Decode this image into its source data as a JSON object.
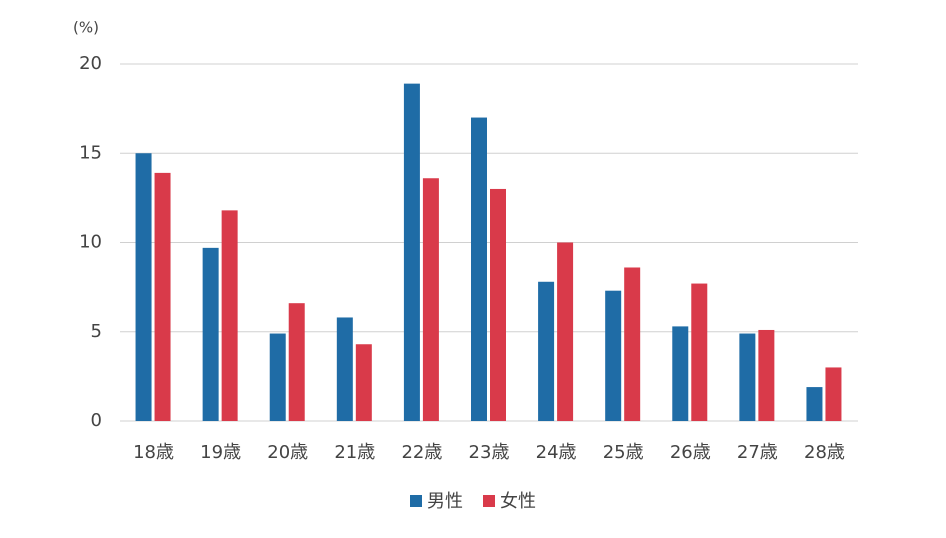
{
  "chart_data": {
    "type": "bar",
    "y_unit": "(%)",
    "categories": [
      "18歳",
      "19歳",
      "20歳",
      "21歳",
      "22歳",
      "23歳",
      "24歳",
      "25歳",
      "26歳",
      "27歳",
      "28歳"
    ],
    "series": [
      {
        "name": "男性",
        "color": "#1f6ca6",
        "values": [
          15,
          9.7,
          4.9,
          5.8,
          18.9,
          17.0,
          7.8,
          7.3,
          5.3,
          4.9,
          1.9
        ]
      },
      {
        "name": "女性",
        "color": "#d93a4a",
        "values": [
          13.9,
          11.8,
          6.6,
          4.3,
          13.6,
          13.0,
          10.0,
          8.6,
          7.7,
          5.1,
          3.0
        ]
      }
    ],
    "ylim": [
      0,
      20
    ],
    "yticks": [
      0,
      5,
      10,
      15,
      20
    ],
    "grid": true,
    "legend": "bottom"
  }
}
